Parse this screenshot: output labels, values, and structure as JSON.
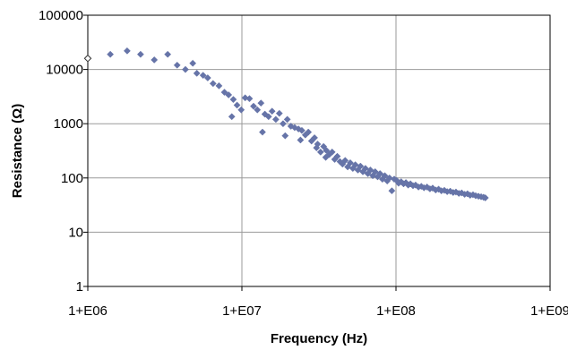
{
  "chart_data": {
    "type": "scatter",
    "title": "",
    "xlabel": "Frequency (Hz)",
    "ylabel": "Resistance (Ω)",
    "x_scale": "log",
    "y_scale": "log",
    "xlim": [
      1000000,
      1000000000
    ],
    "ylim": [
      1,
      100000
    ],
    "x_ticks": [
      1000000,
      10000000,
      100000000,
      1000000000
    ],
    "x_tick_labels": [
      "1+E06",
      "1+E07",
      "1+E08",
      "1+E09"
    ],
    "y_ticks": [
      1,
      10,
      100,
      1000,
      10000,
      100000
    ],
    "y_tick_labels": [
      "1",
      "10",
      "100",
      "1000",
      "10000",
      "100000"
    ],
    "grid": true,
    "legend": "none",
    "colors": {
      "marker": "#6674A8",
      "grid": "#9A9A9A",
      "frame": "#000000"
    },
    "series": [
      {
        "points": [
          [
            1000000,
            16000
          ],
          [
            1400000,
            19000
          ],
          [
            1800000,
            22000
          ],
          [
            2200000,
            19000
          ],
          [
            2700000,
            15000
          ],
          [
            3300000,
            19000
          ],
          [
            3800000,
            12000
          ],
          [
            4300000,
            10000
          ],
          [
            4800000,
            13000
          ],
          [
            5100000,
            8500
          ],
          [
            5600000,
            7800
          ],
          [
            6000000,
            7000
          ],
          [
            6500000,
            5500
          ],
          [
            7100000,
            5000
          ],
          [
            7700000,
            3800
          ],
          [
            8200000,
            3400
          ],
          [
            8600000,
            1350
          ],
          [
            8800000,
            2800
          ],
          [
            9300000,
            2200
          ],
          [
            9900000,
            1800
          ],
          [
            10500000,
            3000
          ],
          [
            11200000,
            2900
          ],
          [
            11900000,
            2100
          ],
          [
            12600000,
            1800
          ],
          [
            13300000,
            2400
          ],
          [
            13600000,
            700
          ],
          [
            14100000,
            1500
          ],
          [
            14900000,
            1350
          ],
          [
            15700000,
            1700
          ],
          [
            16600000,
            1200
          ],
          [
            17500000,
            1550
          ],
          [
            18500000,
            1000
          ],
          [
            19100000,
            600
          ],
          [
            19700000,
            1200
          ],
          [
            20800000,
            900
          ],
          [
            22000000,
            850
          ],
          [
            23300000,
            800
          ],
          [
            24000000,
            500
          ],
          [
            24500000,
            750
          ],
          [
            25800000,
            620
          ],
          [
            27000000,
            700
          ],
          [
            28300000,
            480
          ],
          [
            29600000,
            550
          ],
          [
            30500000,
            360
          ],
          [
            31000000,
            420
          ],
          [
            32400000,
            300
          ],
          [
            33900000,
            380
          ],
          [
            35000000,
            240
          ],
          [
            35400000,
            320
          ],
          [
            36900000,
            270
          ],
          [
            38500000,
            300
          ],
          [
            40000000,
            220
          ],
          [
            41600000,
            250
          ],
          [
            43300000,
            200
          ],
          [
            45000000,
            180
          ],
          [
            46800000,
            210
          ],
          [
            48600000,
            160
          ],
          [
            50500000,
            190
          ],
          [
            52500000,
            150
          ],
          [
            54500000,
            175
          ],
          [
            56600000,
            140
          ],
          [
            58800000,
            165
          ],
          [
            61000000,
            130
          ],
          [
            63300000,
            150
          ],
          [
            65700000,
            120
          ],
          [
            68200000,
            140
          ],
          [
            70700000,
            110
          ],
          [
            73300000,
            130
          ],
          [
            76000000,
            105
          ],
          [
            78800000,
            120
          ],
          [
            81700000,
            95
          ],
          [
            84600000,
            110
          ],
          [
            87700000,
            88
          ],
          [
            90800000,
            100
          ],
          [
            94000000,
            58
          ],
          [
            97400000,
            95
          ],
          [
            101000000,
            90
          ],
          [
            104000000,
            80
          ],
          [
            108000000,
            85
          ],
          [
            112000000,
            78
          ],
          [
            116000000,
            82
          ],
          [
            120000000,
            74
          ],
          [
            124000000,
            78
          ],
          [
            129000000,
            72
          ],
          [
            134000000,
            74
          ],
          [
            140000000,
            68
          ],
          [
            146000000,
            70
          ],
          [
            152000000,
            66
          ],
          [
            159000000,
            68
          ],
          [
            166000000,
            63
          ],
          [
            173000000,
            65
          ],
          [
            181000000,
            60
          ],
          [
            189000000,
            62
          ],
          [
            197000000,
            58
          ],
          [
            206000000,
            59
          ],
          [
            215000000,
            56
          ],
          [
            225000000,
            57
          ],
          [
            235000000,
            54
          ],
          [
            245000000,
            55
          ],
          [
            256000000,
            52
          ],
          [
            267000000,
            53
          ],
          [
            279000000,
            50
          ],
          [
            291000000,
            51
          ],
          [
            303000000,
            48
          ],
          [
            316000000,
            49
          ],
          [
            329000000,
            47
          ],
          [
            343000000,
            46
          ],
          [
            357000000,
            45
          ],
          [
            370000000,
            44
          ],
          [
            380000000,
            43
          ]
        ]
      }
    ]
  }
}
